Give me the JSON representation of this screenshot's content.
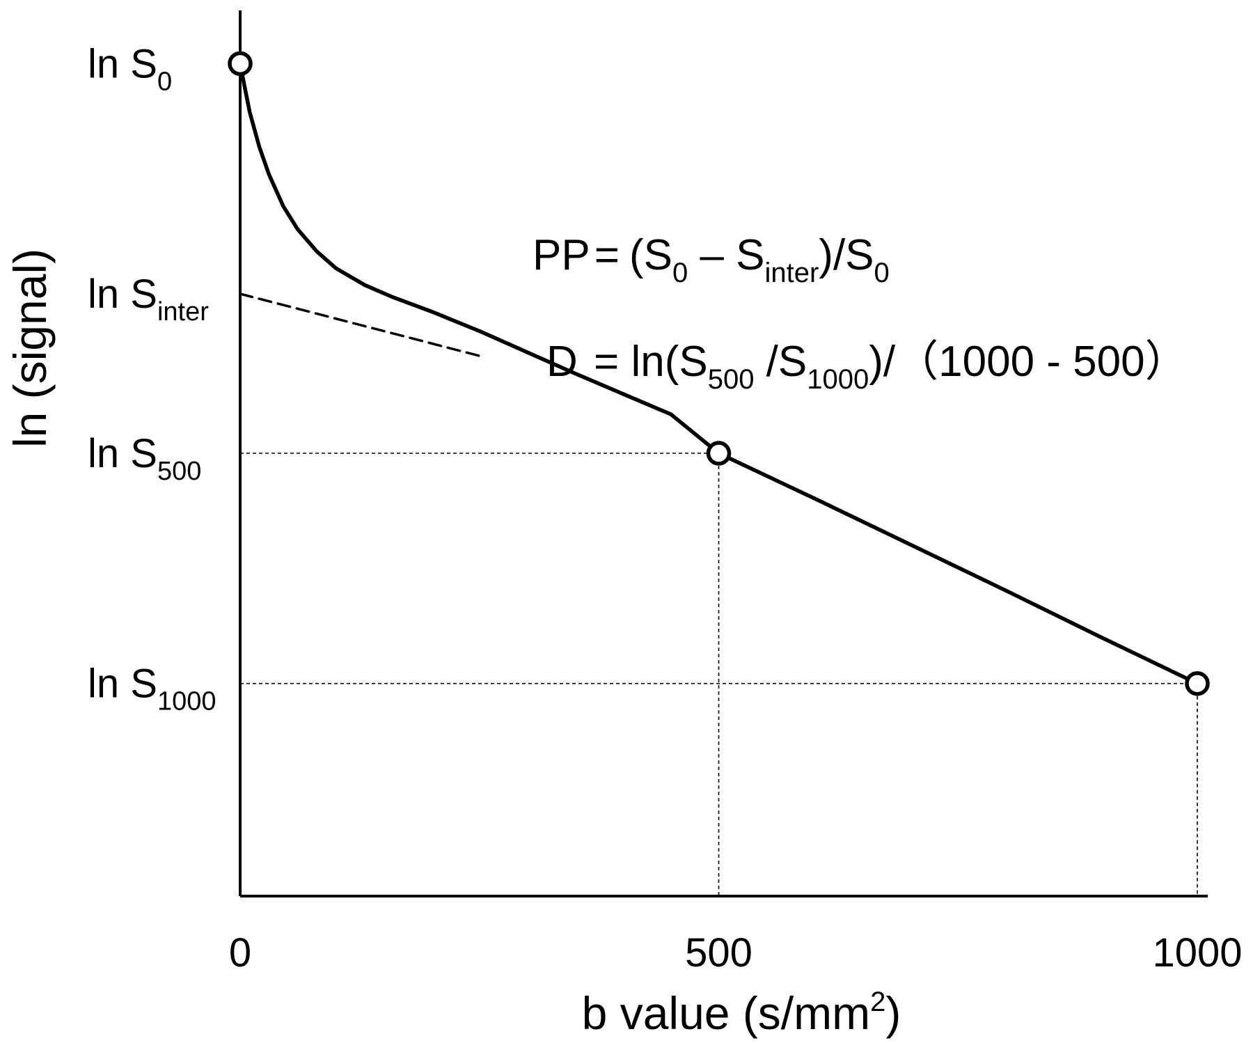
{
  "chart_data": {
    "type": "line",
    "xlabel": "b value (s/mm",
    "xlabel_sup": "2",
    "xlabel_close": ")",
    "ylabel": "ln (signal)",
    "x_ticks": [
      {
        "value": 0,
        "label": "0"
      },
      {
        "value": 500,
        "label": "500"
      },
      {
        "value": 1000,
        "label": "1000"
      }
    ],
    "xlim": [
      0,
      1000
    ],
    "ylim": [
      0,
      1.0
    ],
    "y_ticks": [
      {
        "id": "s0",
        "value": 0.94,
        "base": "ln S",
        "sub": "0"
      },
      {
        "id": "sinter",
        "value": 0.68,
        "base": "ln S",
        "sub": "inter"
      },
      {
        "id": "s500",
        "value": 0.5,
        "base": "ln S",
        "sub": "500"
      },
      {
        "id": "s1000",
        "value": 0.24,
        "base": "ln S",
        "sub": "1000"
      }
    ],
    "series": [
      {
        "style": "solid",
        "x": [
          0,
          5,
          10,
          20,
          30,
          45,
          60,
          80,
          100,
          130,
          160,
          200,
          250,
          300,
          350,
          400,
          450,
          500,
          600,
          700,
          800,
          900,
          1000
        ],
        "y": [
          0.94,
          0.912,
          0.885,
          0.846,
          0.815,
          0.779,
          0.753,
          0.728,
          0.709,
          0.69,
          0.676,
          0.66,
          0.638,
          0.614,
          0.59,
          0.567,
          0.544,
          0.5,
          0.449,
          0.397,
          0.345,
          0.292,
          0.24
        ]
      },
      {
        "style": "dashed",
        "x": [
          0,
          250
        ],
        "y": [
          0.68,
          0.61
        ]
      }
    ],
    "markers": [
      {
        "x": 0,
        "y": 0.94
      },
      {
        "x": 500,
        "y": 0.5
      },
      {
        "x": 1000,
        "y": 0.24
      }
    ],
    "guides": [
      {
        "x": 500,
        "y": 0.5
      },
      {
        "x": 1000,
        "y": 0.24
      }
    ],
    "grid": false,
    "annotations": {
      "pp": {
        "lhs": "PP",
        "eq": "=",
        "open": "(S",
        "s0_sub": "0",
        "minus": " – S",
        "inter_sub": "inter",
        "close": ")/S",
        "s0_sub2": "0"
      },
      "d": {
        "lhs": "D",
        "eq": " = ln(S",
        "s500_sub": "500",
        "slash": " /S",
        "s1000_sub": "1000",
        "tail": ")/（1000 - 500）"
      }
    }
  }
}
